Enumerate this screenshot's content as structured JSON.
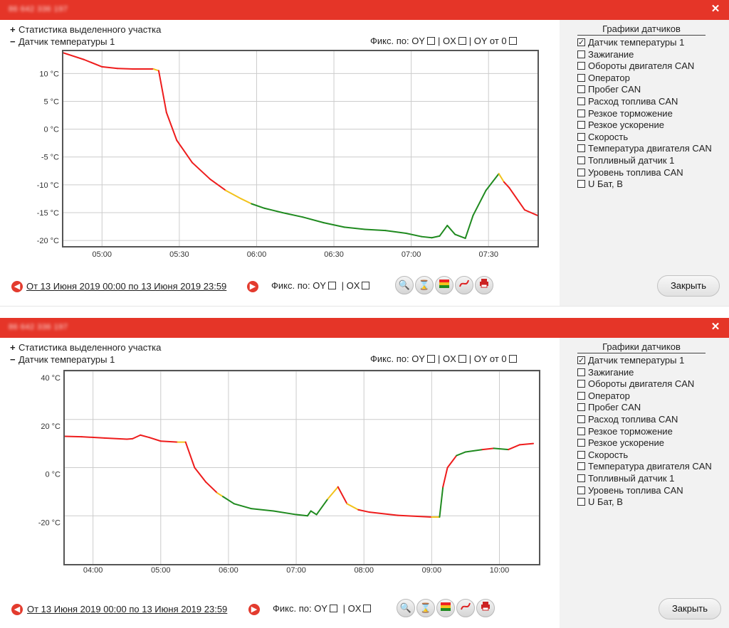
{
  "colors": {
    "titlebar": "#e53528",
    "line_normal": "#ee1c1c",
    "line_warn": "#f2c21b",
    "line_ok": "#1f8a1f",
    "grid": "#cccccc"
  },
  "panels": [
    {
      "title_blurred": "86 642 336 197",
      "stat_label": "Статистика выделенного участка",
      "sensor_label": "Датчик температуры 1",
      "fix_labels": {
        "prefix": "Фикс. по: OY",
        "ox": "| OX",
        "oy0": "| OY от 0"
      },
      "sensors_title": "Графики датчиков",
      "sensors": [
        {
          "label": "Датчик температуры 1",
          "checked": true
        },
        {
          "label": "Зажигание",
          "checked": false
        },
        {
          "label": "Обороты двигателя CAN",
          "checked": false
        },
        {
          "label": "Оператор",
          "checked": false
        },
        {
          "label": "Пробег CAN",
          "checked": false
        },
        {
          "label": "Расход топлива CAN",
          "checked": false
        },
        {
          "label": "Резкое торможение",
          "checked": false
        },
        {
          "label": "Резкое ускорение",
          "checked": false
        },
        {
          "label": "Скорость",
          "checked": false
        },
        {
          "label": "Температура двигателя CAN",
          "checked": false
        },
        {
          "label": "Топливный датчик 1",
          "checked": false
        },
        {
          "label": "Уровень топлива CAN",
          "checked": false
        },
        {
          "label": "U Бат, В",
          "checked": false
        }
      ],
      "period": "От 13 Июня 2019 00:00 по 13 Июня 2019 23:59",
      "fix_bottom": {
        "oy": "Фикс. по: OY",
        "ox": "| OX"
      },
      "close_label": "Закрыть"
    },
    {
      "title_blurred": "86 642 336 197",
      "stat_label": "Статистика выделенного участка",
      "sensor_label": "Датчик температуры 1",
      "fix_labels": {
        "prefix": "Фикс. по: OY",
        "ox": "| OX",
        "oy0": "| OY от 0"
      },
      "sensors_title": "Графики датчиков",
      "sensors": [
        {
          "label": "Датчик температуры 1",
          "checked": true
        },
        {
          "label": "Зажигание",
          "checked": false
        },
        {
          "label": "Обороты двигателя CAN",
          "checked": false
        },
        {
          "label": "Оператор",
          "checked": false
        },
        {
          "label": "Пробег CAN",
          "checked": false
        },
        {
          "label": "Расход топлива CAN",
          "checked": false
        },
        {
          "label": "Резкое торможение",
          "checked": false
        },
        {
          "label": "Резкое ускорение",
          "checked": false
        },
        {
          "label": "Скорость",
          "checked": false
        },
        {
          "label": "Температура двигателя CAN",
          "checked": false
        },
        {
          "label": "Топливный датчик 1",
          "checked": false
        },
        {
          "label": "Уровень топлива CAN",
          "checked": false
        },
        {
          "label": "U Бат, В",
          "checked": false
        }
      ],
      "period": "От 13 Июня 2019 00:00 по 13 Июня 2019 23:59",
      "fix_bottom": {
        "oy": "Фикс. по: OY",
        "ox": "| OX"
      },
      "close_label": "Закрыть"
    }
  ],
  "chart_data": [
    {
      "type": "line",
      "title": "",
      "xlabel": "",
      "ylabel": "",
      "x_ticks": [
        "05:00",
        "05:30",
        "06:00",
        "06:30",
        "07:00",
        "07:30"
      ],
      "y_ticks": [
        "10 °C",
        "5 °C",
        "0 °C",
        "-5 °C",
        "-10 °C",
        "-15 °C",
        "-20 °C"
      ],
      "xlim": [
        "04:45",
        "07:49"
      ],
      "ylim": [
        -21,
        14
      ],
      "grid": true,
      "series": [
        {
          "points": [
            [
              "04:45",
              13.7,
              "red"
            ],
            [
              "04:53",
              12.5,
              "red"
            ],
            [
              "05:00",
              11.2,
              "red"
            ],
            [
              "05:06",
              10.9,
              "red"
            ],
            [
              "05:12",
              10.8,
              "red"
            ],
            [
              "05:17",
              10.8,
              "red"
            ],
            [
              "05:20",
              10.8,
              "red"
            ],
            [
              "05:22",
              10.5,
              "yellow"
            ],
            [
              "05:25",
              3.0,
              "red"
            ],
            [
              "05:29",
              -2.0,
              "red"
            ],
            [
              "05:35",
              -6.0,
              "red"
            ],
            [
              "05:42",
              -9.0,
              "red"
            ],
            [
              "05:48",
              -11.0,
              "red"
            ],
            [
              "05:54",
              -12.5,
              "yellow"
            ],
            [
              "05:58",
              -13.4,
              "yellow"
            ],
            [
              "06:03",
              -14.2,
              "green"
            ],
            [
              "06:10",
              -15.0,
              "green"
            ],
            [
              "06:18",
              -15.8,
              "green"
            ],
            [
              "06:26",
              -16.8,
              "green"
            ],
            [
              "06:34",
              -17.6,
              "green"
            ],
            [
              "06:42",
              -18.0,
              "green"
            ],
            [
              "06:50",
              -18.2,
              "green"
            ],
            [
              "06:58",
              -18.7,
              "green"
            ],
            [
              "07:04",
              -19.3,
              "green"
            ],
            [
              "07:08",
              -19.5,
              "green"
            ],
            [
              "07:11",
              -19.2,
              "green"
            ],
            [
              "07:14",
              -17.3,
              "green"
            ],
            [
              "07:17",
              -18.9,
              "green"
            ],
            [
              "07:21",
              -19.6,
              "green"
            ],
            [
              "07:24",
              -15.5,
              "green"
            ],
            [
              "07:29",
              -11.0,
              "green"
            ],
            [
              "07:34",
              -8.0,
              "green"
            ],
            [
              "07:36",
              -9.5,
              "yellow"
            ],
            [
              "07:38",
              -10.5,
              "red"
            ],
            [
              "07:44",
              -14.5,
              "red"
            ],
            [
              "07:49",
              -15.5,
              "red"
            ]
          ]
        }
      ]
    },
    {
      "type": "line",
      "title": "",
      "xlabel": "",
      "ylabel": "",
      "x_ticks": [
        "04:00",
        "05:00",
        "06:00",
        "07:00",
        "08:00",
        "09:00",
        "10:00"
      ],
      "y_ticks": [
        "40 °C",
        "20 °C",
        "0 °C",
        "-20 °C"
      ],
      "xlim": [
        "03:35",
        "10:35"
      ],
      "ylim": [
        -40,
        40
      ],
      "grid": true,
      "series": [
        {
          "points": [
            [
              "03:35",
              13.0,
              "red"
            ],
            [
              "03:50",
              12.8,
              "red"
            ],
            [
              "04:10",
              12.3,
              "red"
            ],
            [
              "04:30",
              11.8,
              "red"
            ],
            [
              "04:35",
              12.0,
              "red"
            ],
            [
              "04:42",
              13.5,
              "red"
            ],
            [
              "04:50",
              12.5,
              "red"
            ],
            [
              "05:00",
              11.0,
              "red"
            ],
            [
              "05:15",
              10.6,
              "red"
            ],
            [
              "05:22",
              10.6,
              "yellow"
            ],
            [
              "05:30",
              0.0,
              "red"
            ],
            [
              "05:40",
              -6.0,
              "red"
            ],
            [
              "05:50",
              -10.5,
              "red"
            ],
            [
              "05:55",
              -12.0,
              "yellow"
            ],
            [
              "06:05",
              -15.0,
              "green"
            ],
            [
              "06:20",
              -17.0,
              "green"
            ],
            [
              "06:40",
              -18.0,
              "green"
            ],
            [
              "07:00",
              -19.5,
              "green"
            ],
            [
              "07:10",
              -20.0,
              "green"
            ],
            [
              "07:13",
              -18.0,
              "green"
            ],
            [
              "07:18",
              -19.5,
              "green"
            ],
            [
              "07:28",
              -13.0,
              "green"
            ],
            [
              "07:37",
              -8.0,
              "yellow"
            ],
            [
              "07:45",
              -15.0,
              "red"
            ],
            [
              "07:55",
              -17.5,
              "yellow"
            ],
            [
              "08:05",
              -18.5,
              "red"
            ],
            [
              "08:30",
              -19.8,
              "red"
            ],
            [
              "09:00",
              -20.5,
              "red"
            ],
            [
              "09:07",
              -20.5,
              "yellow"
            ],
            [
              "09:10",
              -8.0,
              "green"
            ],
            [
              "09:14",
              0.0,
              "red"
            ],
            [
              "09:22",
              5.0,
              "red"
            ],
            [
              "09:30",
              6.5,
              "green"
            ],
            [
              "09:45",
              7.5,
              "green"
            ],
            [
              "09:55",
              8.0,
              "red"
            ],
            [
              "10:08",
              7.5,
              "green"
            ],
            [
              "10:18",
              9.5,
              "red"
            ],
            [
              "10:30",
              10.0,
              "red"
            ]
          ]
        }
      ]
    }
  ]
}
